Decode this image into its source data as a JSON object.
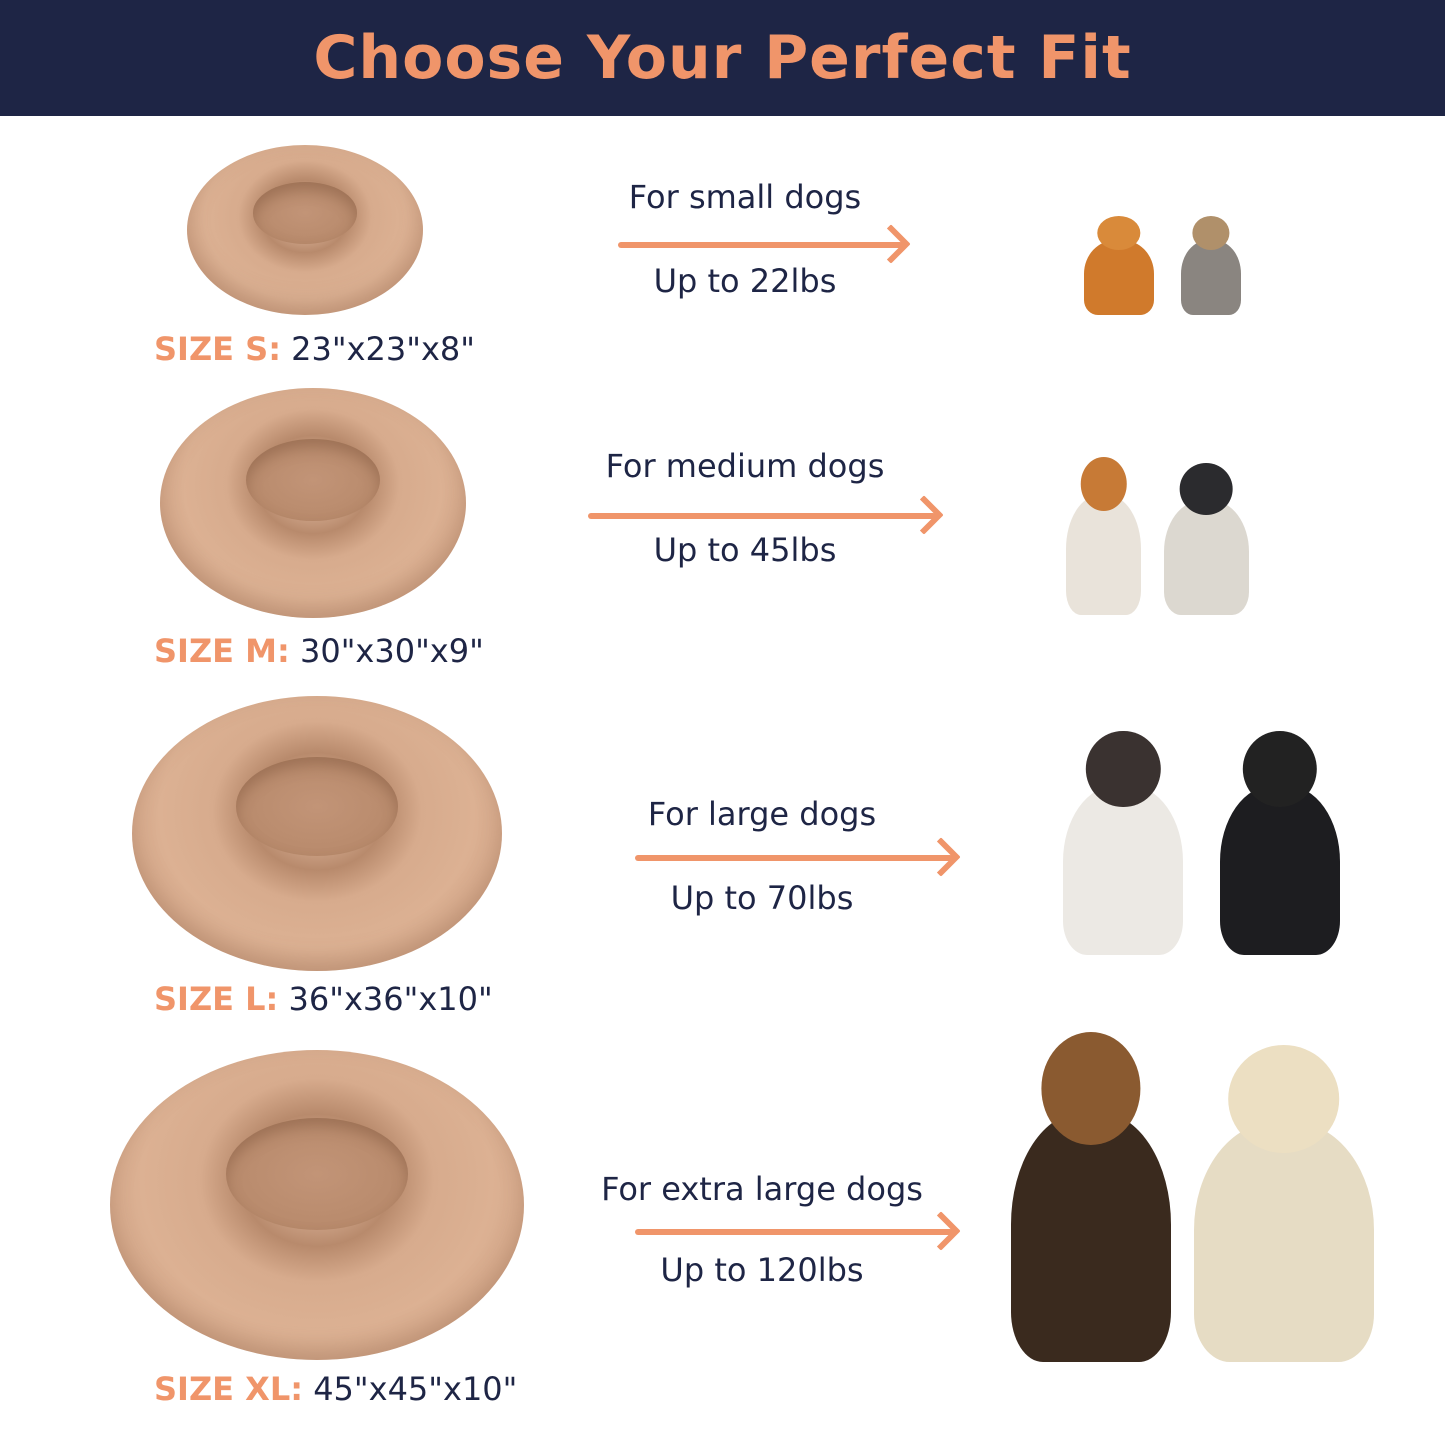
{
  "title": "Choose Your Perfect Fit",
  "colors": {
    "accent": "#f0956a",
    "navy": "#1e2545",
    "bed": "#d7ab8d"
  },
  "sizes": [
    {
      "label": "SIZE S:",
      "dims": "23\"x23\"x8\"",
      "for": "For small dogs",
      "weight": "Up to 22lbs"
    },
    {
      "label": "SIZE M:",
      "dims": "30\"x30\"x9\"",
      "for": "For medium dogs",
      "weight": "Up to 45lbs"
    },
    {
      "label": "SIZE L:",
      "dims": "36\"x36\"x10\"",
      "for": "For large dogs",
      "weight": "Up to 70lbs"
    },
    {
      "label": "SIZE XL:",
      "dims": "45\"x45\"x10\"",
      "for": "For extra large dogs",
      "weight": "Up to 120lbs"
    }
  ]
}
